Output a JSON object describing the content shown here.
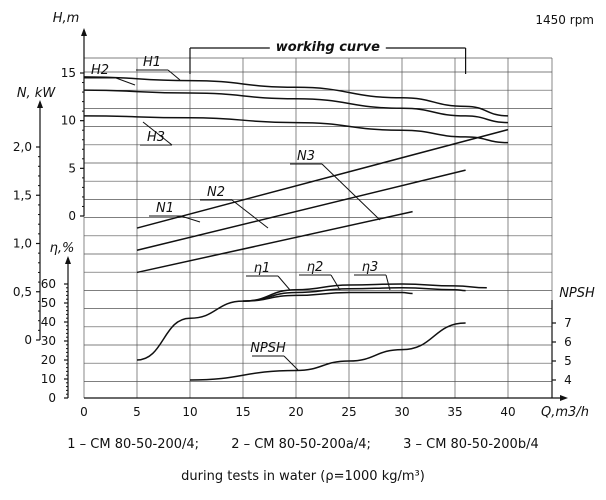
{
  "speed": "1450 rpm",
  "working_curve_label": "workihg curve",
  "models": [
    "1 – CM 80-50-200/4;",
    "2 – CM 80-50-200a/4;",
    "3 – CM 80-50-200b/4"
  ],
  "conditions": "during tests in water (ρ=1000 kg/m³)",
  "chart_data": {
    "type": "line",
    "x_label": "Q,m3/h",
    "x_ticks": [
      0,
      5,
      10,
      15,
      20,
      25,
      30,
      35,
      40
    ],
    "xlim": [
      0,
      44
    ],
    "working_range": [
      10,
      36
    ],
    "axes": {
      "H": {
        "label": "H,m",
        "ticks": [
          "15",
          "10",
          "5",
          "0"
        ]
      },
      "N": {
        "label": "N, kW",
        "ticks": [
          "2,0",
          "1,5",
          "1,0",
          "0,5",
          "0"
        ]
      },
      "eta": {
        "label": "η,%",
        "ticks": [
          "60",
          "50",
          "40",
          "30",
          "20",
          "10",
          "0"
        ]
      },
      "NPSH": {
        "label": "NPSH",
        "ticks": [
          "7",
          "6",
          "5",
          "4"
        ]
      }
    },
    "series": [
      {
        "name": "H1",
        "axis": "H",
        "x": [
          0,
          10,
          20,
          30,
          36,
          40
        ],
        "y": [
          14.6,
          14.2,
          13.5,
          12.4,
          11.5,
          10.5
        ]
      },
      {
        "name": "H2",
        "axis": "H",
        "x": [
          0,
          10,
          20,
          30,
          36,
          40
        ],
        "y": [
          13.2,
          12.9,
          12.3,
          11.3,
          10.5,
          9.8
        ]
      },
      {
        "name": "H3",
        "axis": "H",
        "x": [
          0,
          10,
          20,
          30,
          36,
          40
        ],
        "y": [
          10.5,
          10.3,
          9.8,
          9.0,
          8.3,
          7.7
        ]
      },
      {
        "name": "N1",
        "axis": "N",
        "x": [
          5,
          40
        ],
        "y": [
          1.16,
          2.18
        ]
      },
      {
        "name": "N2",
        "axis": "N",
        "x": [
          5,
          36
        ],
        "y": [
          0.93,
          1.76
        ]
      },
      {
        "name": "N3",
        "axis": "N",
        "x": [
          5,
          31
        ],
        "y": [
          0.7,
          1.33
        ]
      },
      {
        "name": "η1",
        "axis": "eta",
        "x": [
          5,
          10,
          15,
          20,
          25,
          30,
          35,
          38
        ],
        "y": [
          20,
          42,
          51,
          57,
          59.5,
          60,
          59,
          58
        ]
      },
      {
        "name": "η2",
        "axis": "eta",
        "x": [
          15,
          20,
          25,
          30,
          35,
          36
        ],
        "y": [
          51,
          55.5,
          57.5,
          58,
          57,
          56.5
        ]
      },
      {
        "name": "η3",
        "axis": "eta",
        "x": [
          15,
          20,
          25,
          30,
          31
        ],
        "y": [
          51,
          54,
          55.5,
          55.5,
          55
        ]
      },
      {
        "name": "NPSH",
        "axis": "NPSH",
        "x": [
          10,
          20,
          25,
          30,
          36
        ],
        "y": [
          4.0,
          4.5,
          5.0,
          5.6,
          7.0
        ]
      }
    ],
    "grid": true
  }
}
